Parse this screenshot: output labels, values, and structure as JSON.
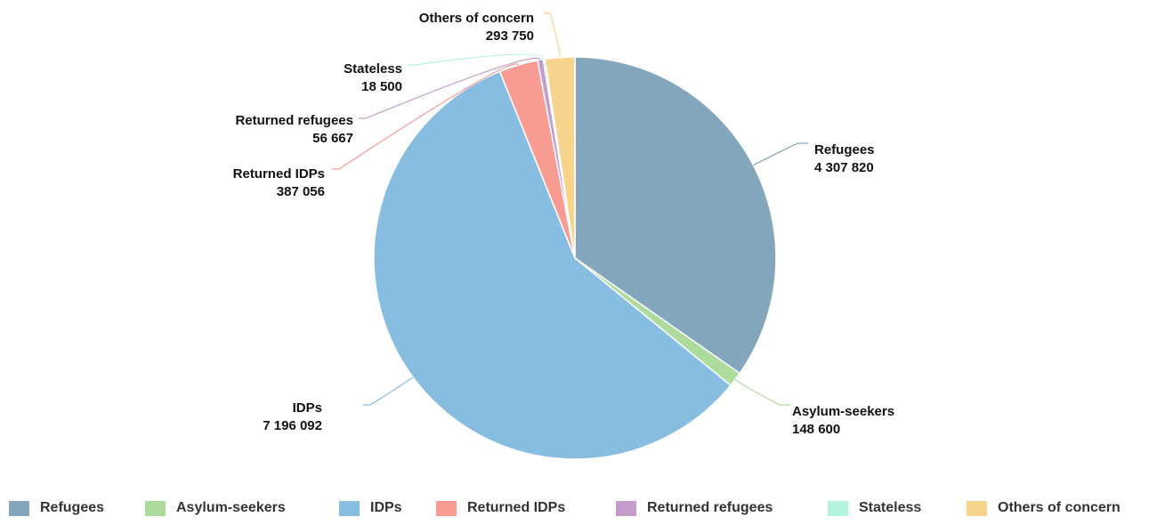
{
  "chart_data": {
    "type": "pie",
    "title": "",
    "start_angle_deg": 0,
    "direction": "clockwise",
    "legend_position": "bottom",
    "slices": [
      {
        "label": "Refugees",
        "value": 4307820,
        "value_label": "4 307 820",
        "color": "#84a6bc"
      },
      {
        "label": "Asylum-seekers",
        "value": 148600,
        "value_label": "148 600",
        "color": "#addb9c"
      },
      {
        "label": "IDPs",
        "value": 7196092,
        "value_label": "7 196 092",
        "color": "#87bde0"
      },
      {
        "label": "Returned IDPs",
        "value": 387056,
        "value_label": "387 056",
        "color": "#f79b93"
      },
      {
        "label": "Returned refugees",
        "value": 56667,
        "value_label": "56 667",
        "color": "#c39ccc"
      },
      {
        "label": "Stateless",
        "value": 18500,
        "value_label": "18 500",
        "color": "#b3f2dc"
      },
      {
        "label": "Others of concern",
        "value": 293750,
        "value_label": "293 750",
        "color": "#f7d48b"
      }
    ]
  }
}
